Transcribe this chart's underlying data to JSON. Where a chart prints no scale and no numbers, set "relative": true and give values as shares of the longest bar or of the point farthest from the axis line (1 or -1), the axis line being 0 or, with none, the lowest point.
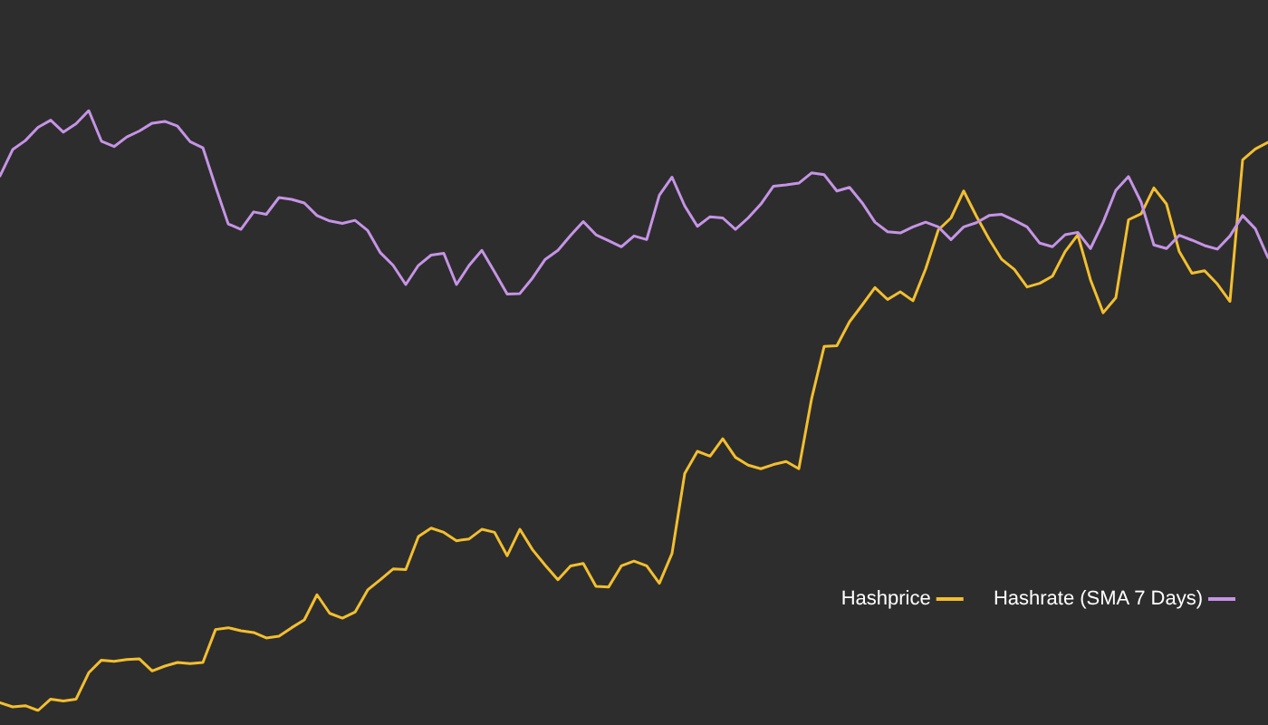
{
  "chart_data": {
    "type": "line",
    "relative": true,
    "legend": "bottom right",
    "line_style": "solid",
    "grid": false,
    "tick_labels": false,
    "categories": [
      null,
      null,
      null,
      null,
      null,
      null,
      null,
      null,
      null,
      null,
      null,
      null,
      null,
      null,
      null,
      null,
      null,
      null,
      null,
      null,
      null,
      null,
      null,
      null,
      null,
      null,
      null,
      null,
      null,
      null,
      null,
      null,
      null,
      null,
      null,
      null,
      null,
      null,
      null,
      null,
      null,
      null,
      null,
      null,
      null,
      null,
      null,
      null,
      null,
      null,
      null,
      null,
      null,
      null,
      null,
      null,
      null,
      null,
      null,
      null,
      null,
      null,
      null,
      null,
      null,
      null,
      null,
      null,
      null,
      null,
      null,
      null,
      null,
      null,
      null,
      null,
      null,
      null,
      null,
      null,
      null,
      null,
      null,
      null,
      null,
      null,
      null,
      null,
      null,
      null,
      null,
      null,
      null,
      null,
      null,
      null,
      null,
      null,
      null,
      null,
      null
    ],
    "series": [
      {
        "name": "Hashprice",
        "color": "#f2bf2f",
        "values": [
          0.013,
          0.006,
          0.008,
          0,
          0.019,
          0.016,
          0.019,
          0.063,
          0.084,
          0.082,
          0.085,
          0.086,
          0.066,
          0.074,
          0.08,
          0.078,
          0.08,
          0.135,
          0.138,
          0.133,
          0.13,
          0.121,
          0.124,
          0.138,
          0.151,
          0.193,
          0.162,
          0.154,
          0.164,
          0.201,
          0.218,
          0.236,
          0.235,
          0.29,
          0.304,
          0.297,
          0.283,
          0.286,
          0.302,
          0.297,
          0.258,
          0.302,
          0.268,
          0.242,
          0.218,
          0.241,
          0.245,
          0.207,
          0.206,
          0.241,
          0.249,
          0.241,
          0.212,
          0.262,
          0.395,
          0.432,
          0.424,
          0.453,
          0.422,
          0.409,
          0.403,
          0.41,
          0.415,
          0.403,
          0.519,
          0.607,
          0.608,
          0.648,
          0.676,
          0.705,
          0.685,
          0.698,
          0.683,
          0.736,
          0.801,
          0.821,
          0.866,
          0.824,
          0.786,
          0.752,
          0.735,
          0.706,
          0.712,
          0.724,
          0.765,
          0.793,
          0.718,
          0.663,
          0.688,
          0.818,
          0.828,
          0.871,
          0.844,
          0.765,
          0.729,
          0.733,
          0.711,
          0.682,
          0.918,
          0.936,
          0.947
        ]
      },
      {
        "name": "Hashrate (SMA 7 Days)",
        "color": "#c594e6",
        "values": [
          0.891,
          0.935,
          0.95,
          0.972,
          0.984,
          0.964,
          0.978,
          1,
          0.949,
          0.94,
          0.956,
          0.966,
          0.979,
          0.982,
          0.974,
          0.948,
          0.938,
          0.873,
          0.811,
          0.802,
          0.831,
          0.827,
          0.855,
          0.852,
          0.846,
          0.825,
          0.816,
          0.812,
          0.817,
          0.8,
          0.763,
          0.742,
          0.71,
          0.742,
          0.759,
          0.762,
          0.71,
          0.742,
          0.767,
          0.731,
          0.694,
          0.695,
          0.721,
          0.752,
          0.767,
          0.792,
          0.815,
          0.793,
          0.783,
          0.773,
          0.791,
          0.785,
          0.859,
          0.889,
          0.841,
          0.807,
          0.823,
          0.821,
          0.802,
          0.821,
          0.844,
          0.874,
          0.876,
          0.879,
          0.896,
          0.893,
          0.866,
          0.872,
          0.846,
          0.814,
          0.798,
          0.796,
          0.806,
          0.814,
          0.806,
          0.785,
          0.806,
          0.813,
          0.825,
          0.827,
          0.817,
          0.806,
          0.779,
          0.773,
          0.793,
          0.797,
          0.77,
          0.814,
          0.867,
          0.89,
          0.847,
          0.776,
          0.77,
          0.792,
          0.784,
          0.775,
          0.769,
          0.791,
          0.825,
          0.803,
          0.755
        ]
      }
    ]
  }
}
